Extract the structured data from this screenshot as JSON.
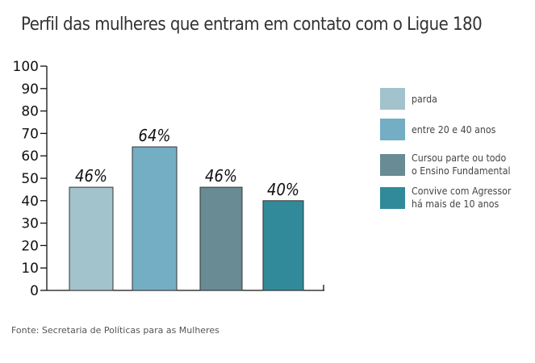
{
  "title": "Perfil das mulheres que entram em contato com o Ligue 180",
  "source": "Fonte: Secretaria de Políticas para as Mulheres",
  "chart_data": {
    "type": "bar",
    "title": "Perfil das mulheres que entram em contato com o Ligue 180",
    "categories": [
      "parda",
      "entre 20 e 40 anos",
      "Cursou parte ou todo\no Ensino Fundamental",
      "Convive com Agressor\nhá mais  de 10 anos"
    ],
    "values": [
      46,
      64,
      46,
      40
    ],
    "data_labels": [
      "46%",
      "64%",
      "46%",
      "40%"
    ],
    "colors": [
      "#a3c3cc",
      "#74aec4",
      "#688b94",
      "#318a99"
    ],
    "ylim": [
      0,
      100
    ],
    "yticks": [
      "0",
      "10",
      "20",
      "30",
      "40",
      "50",
      "60",
      "70",
      "80",
      "90",
      "100"
    ],
    "grid": false,
    "legend": "right"
  }
}
